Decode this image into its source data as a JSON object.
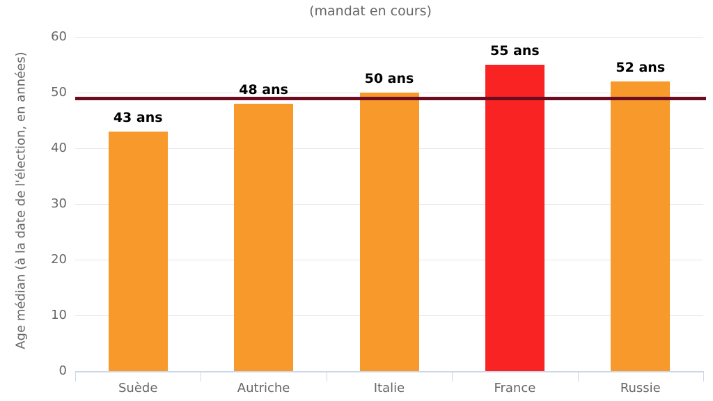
{
  "chart_data": {
    "type": "bar",
    "subtitle": "(mandat en cours)",
    "xlabel": "",
    "ylabel": "Age médian (à la date de l'élection, en années)",
    "categories": [
      "Suède",
      "Autriche",
      "Italie",
      "France",
      "Russie"
    ],
    "values": [
      43,
      48,
      50,
      55,
      52
    ],
    "value_labels": [
      "43 ans",
      "48 ans",
      "50 ans",
      "55 ans",
      "52 ans"
    ],
    "ylim": [
      0,
      60
    ],
    "yticks": [
      0,
      10,
      20,
      30,
      40,
      50,
      60
    ],
    "grid": true,
    "legend_position": "none",
    "reference_line": {
      "value": 49,
      "color": "#6B0C21"
    },
    "highlight_category": "France",
    "colors": {
      "bar_default": "#F8992B",
      "bar_highlight": "#FA2323",
      "bar_colors": [
        "#F8992B",
        "#F8992B",
        "#F8992B",
        "#FA2323",
        "#F8992B"
      ],
      "gridline": "#E6E6E6",
      "axis_line": "#CCD6EB",
      "tick_label_text": "#666666",
      "subtitle_text": "#666666",
      "value_label_text": "#000000"
    }
  }
}
